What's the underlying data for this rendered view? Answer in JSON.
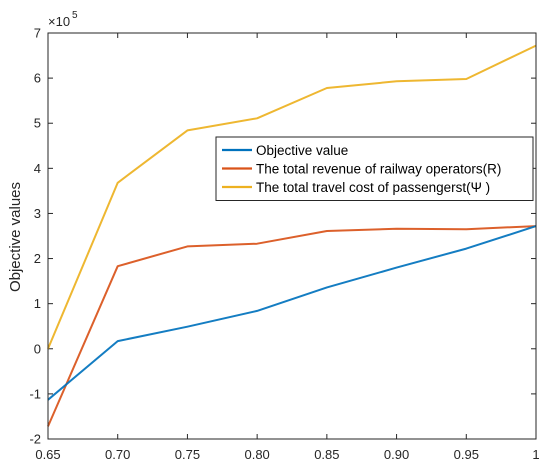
{
  "chart_data": {
    "type": "line",
    "ylabel": "Objective values",
    "xlabel": "",
    "y_multiplier_label": "×10",
    "y_multiplier_exponent": "5",
    "x": [
      0.65,
      0.7,
      0.75,
      0.8,
      0.85,
      0.9,
      0.95,
      1.0
    ],
    "x_tick_labels": [
      "0.65",
      "0.70",
      "0.75",
      "0.80",
      "0.85",
      "0.90",
      "0.95",
      "1"
    ],
    "xlim": [
      0.65,
      1.0
    ],
    "ylim": [
      -2,
      7
    ],
    "y_ticks": [
      -2,
      -1,
      0,
      1,
      2,
      3,
      4,
      5,
      6,
      7
    ],
    "y_tick_labels": [
      "-2",
      "-1",
      "0",
      "1",
      "2",
      "3",
      "4",
      "5",
      "6",
      "7"
    ],
    "grid": false,
    "legend_position": "center-right",
    "series": [
      {
        "name": "Objective value",
        "color": "#0072bd",
        "values": [
          -1.13,
          0.17,
          0.49,
          0.84,
          1.36,
          1.8,
          2.22,
          2.72
        ]
      },
      {
        "name": "The total revenue of railway operators(R)",
        "color": "#d95319",
        "values": [
          -1.72,
          1.83,
          2.27,
          2.33,
          2.61,
          2.66,
          2.65,
          2.72
        ]
      },
      {
        "name": "The total travel cost of passengerst(Ψ )",
        "color": "#edb120",
        "values": [
          0.0,
          3.68,
          4.84,
          5.11,
          5.78,
          5.93,
          5.98,
          6.72
        ]
      }
    ]
  }
}
